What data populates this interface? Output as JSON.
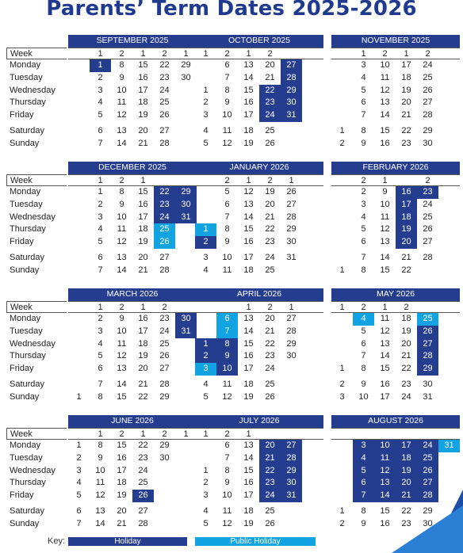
{
  "title": "Parents’ Term Dates 2025-2026",
  "row_labels": [
    "Week",
    "Monday",
    "Tuesday",
    "Wednesday",
    "Thursday",
    "Friday",
    "Saturday",
    "Sunday"
  ],
  "months": [
    {
      "name": "SEPTEMBER 2025",
      "weeks": [
        "",
        "1",
        "2",
        "1",
        "2",
        "1"
      ],
      "days": [
        [
          "",
          "1",
          "8",
          "15",
          "22",
          "29"
        ],
        [
          "",
          "2",
          "9",
          "16",
          "23",
          "30"
        ],
        [
          "",
          "3",
          "10",
          "17",
          "24",
          ""
        ],
        [
          "",
          "4",
          "11",
          "18",
          "25",
          ""
        ],
        [
          "",
          "5",
          "12",
          "19",
          "26",
          ""
        ]
      ],
      "weekend": [
        [
          "",
          "6",
          "13",
          "20",
          "27",
          ""
        ],
        [
          "",
          "7",
          "14",
          "21",
          "28",
          ""
        ]
      ],
      "hol": [
        "0-1"
      ],
      "pub": []
    },
    {
      "name": "OCTOBER 2025",
      "weeks": [
        "1",
        "2",
        "1",
        "2",
        "",
        ""
      ],
      "days": [
        [
          "",
          "6",
          "13",
          "20",
          "27",
          ""
        ],
        [
          "",
          "7",
          "14",
          "21",
          "28",
          ""
        ],
        [
          "1",
          "8",
          "15",
          "22",
          "29",
          ""
        ],
        [
          "2",
          "9",
          "16",
          "23",
          "30",
          ""
        ],
        [
          "3",
          "10",
          "17",
          "24",
          "31",
          ""
        ]
      ],
      "weekend": [
        [
          "4",
          "11",
          "18",
          "25",
          "",
          ""
        ],
        [
          "5",
          "12",
          "19",
          "26",
          "",
          ""
        ]
      ],
      "hol": [
        "0-4",
        "1-4",
        "2-3",
        "2-4",
        "3-3",
        "3-4",
        "4-3",
        "4-4"
      ],
      "pub": []
    },
    {
      "name": "NOVEMBER 2025",
      "weeks": [
        "",
        "1",
        "2",
        "1",
        "2",
        ""
      ],
      "days": [
        [
          "",
          "3",
          "10",
          "17",
          "24",
          ""
        ],
        [
          "",
          "4",
          "11",
          "18",
          "25",
          ""
        ],
        [
          "",
          "5",
          "12",
          "19",
          "26",
          ""
        ],
        [
          "",
          "6",
          "13",
          "20",
          "27",
          ""
        ],
        [
          "",
          "7",
          "14",
          "21",
          "28",
          ""
        ]
      ],
      "weekend": [
        [
          "1",
          "8",
          "15",
          "22",
          "29",
          ""
        ],
        [
          "2",
          "9",
          "16",
          "23",
          "30",
          ""
        ]
      ],
      "hol": [],
      "pub": []
    },
    {
      "name": "DECEMBER 2025",
      "weeks": [
        "",
        "1",
        "2",
        "1",
        "",
        ""
      ],
      "days": [
        [
          "",
          "1",
          "8",
          "15",
          "22",
          "29"
        ],
        [
          "",
          "2",
          "9",
          "16",
          "23",
          "30"
        ],
        [
          "",
          "3",
          "10",
          "17",
          "24",
          "31"
        ],
        [
          "",
          "4",
          "11",
          "18",
          "25",
          ""
        ],
        [
          "",
          "5",
          "12",
          "19",
          "26",
          ""
        ]
      ],
      "weekend": [
        [
          "",
          "6",
          "13",
          "20",
          "27",
          ""
        ],
        [
          "",
          "7",
          "14",
          "21",
          "28",
          ""
        ]
      ],
      "hol": [
        "0-4",
        "0-5",
        "1-4",
        "1-5",
        "2-4",
        "2-5"
      ],
      "pub": [
        "3-4",
        "4-4"
      ]
    },
    {
      "name": "JANUARY 2026",
      "weeks": [
        "",
        "2",
        "1",
        "2",
        "1",
        ""
      ],
      "days": [
        [
          "",
          "5",
          "12",
          "19",
          "26",
          ""
        ],
        [
          "",
          "6",
          "13",
          "20",
          "27",
          ""
        ],
        [
          "",
          "7",
          "14",
          "21",
          "28",
          ""
        ],
        [
          "1",
          "8",
          "15",
          "22",
          "29",
          ""
        ],
        [
          "2",
          "9",
          "16",
          "23",
          "30",
          ""
        ]
      ],
      "weekend": [
        [
          "3",
          "10",
          "17",
          "24",
          "31",
          ""
        ],
        [
          "4",
          "11",
          "18",
          "25",
          "",
          ""
        ]
      ],
      "hol": [
        "4-0"
      ],
      "pub": [
        "3-0"
      ]
    },
    {
      "name": "FEBRUARY 2026",
      "weeks": [
        "",
        "2",
        "1",
        "",
        "2",
        ""
      ],
      "days": [
        [
          "",
          "2",
          "9",
          "16",
          "23",
          ""
        ],
        [
          "",
          "3",
          "10",
          "17",
          "24",
          ""
        ],
        [
          "",
          "4",
          "11",
          "18",
          "25",
          ""
        ],
        [
          "",
          "5",
          "12",
          "19",
          "26",
          ""
        ],
        [
          "",
          "6",
          "13",
          "20",
          "27",
          ""
        ]
      ],
      "weekend": [
        [
          "",
          "7",
          "14",
          "21",
          "28",
          ""
        ],
        [
          "1",
          "8",
          "15",
          "22",
          "",
          ""
        ]
      ],
      "hol": [
        "0-3",
        "0-4",
        "1-3",
        "2-3",
        "3-3",
        "4-3"
      ],
      "pub": []
    },
    {
      "name": "MARCH 2026",
      "weeks": [
        "",
        "1",
        "2",
        "1",
        "2",
        ""
      ],
      "days": [
        [
          "",
          "2",
          "9",
          "16",
          "23",
          "30"
        ],
        [
          "",
          "3",
          "10",
          "17",
          "24",
          "31"
        ],
        [
          "",
          "4",
          "11",
          "18",
          "25",
          ""
        ],
        [
          "",
          "5",
          "12",
          "19",
          "26",
          ""
        ],
        [
          "",
          "6",
          "13",
          "20",
          "27",
          ""
        ]
      ],
      "weekend": [
        [
          "",
          "7",
          "14",
          "21",
          "28",
          ""
        ],
        [
          "1",
          "8",
          "15",
          "22",
          "29",
          ""
        ]
      ],
      "hol": [
        "0-5",
        "1-5"
      ],
      "pub": []
    },
    {
      "name": "APRIL 2026",
      "weeks": [
        "",
        "",
        "1",
        "2",
        "1",
        ""
      ],
      "days": [
        [
          "",
          "6",
          "13",
          "20",
          "27",
          ""
        ],
        [
          "",
          "7",
          "14",
          "21",
          "28",
          ""
        ],
        [
          "1",
          "8",
          "15",
          "22",
          "29",
          ""
        ],
        [
          "2",
          "9",
          "16",
          "23",
          "30",
          ""
        ],
        [
          "3",
          "10",
          "17",
          "24",
          "",
          ""
        ]
      ],
      "weekend": [
        [
          "4",
          "11",
          "18",
          "25",
          "",
          ""
        ],
        [
          "5",
          "12",
          "19",
          "26",
          "",
          ""
        ]
      ],
      "hol": [
        "2-0",
        "2-1",
        "3-0",
        "3-1",
        "4-1"
      ],
      "pub": [
        "0-1",
        "1-1",
        "4-0"
      ]
    },
    {
      "name": "MAY 2026",
      "weeks": [
        "1",
        "2",
        "1",
        "2",
        "",
        ""
      ],
      "days": [
        [
          "",
          "4",
          "11",
          "18",
          "25",
          ""
        ],
        [
          "",
          "5",
          "12",
          "19",
          "26",
          ""
        ],
        [
          "",
          "6",
          "13",
          "20",
          "27",
          ""
        ],
        [
          "",
          "7",
          "14",
          "21",
          "28",
          ""
        ],
        [
          "1",
          "8",
          "15",
          "22",
          "29",
          ""
        ]
      ],
      "weekend": [
        [
          "2",
          "9",
          "16",
          "23",
          "30",
          ""
        ],
        [
          "3",
          "10",
          "17",
          "24",
          "31",
          ""
        ]
      ],
      "hol": [
        "1-4",
        "2-4",
        "3-4",
        "4-4"
      ],
      "pub": [
        "0-1",
        "0-4"
      ]
    },
    {
      "name": "JUNE 2026",
      "weeks": [
        "",
        "1",
        "2",
        "1",
        "2",
        "1"
      ],
      "days": [
        [
          "1",
          "8",
          "15",
          "22",
          "29",
          ""
        ],
        [
          "2",
          "9",
          "16",
          "23",
          "30",
          ""
        ],
        [
          "3",
          "10",
          "17",
          "24",
          "",
          ""
        ],
        [
          "4",
          "11",
          "18",
          "25",
          "",
          ""
        ],
        [
          "5",
          "12",
          "19",
          "26",
          "",
          ""
        ]
      ],
      "weekend": [
        [
          "6",
          "13",
          "20",
          "27",
          "",
          ""
        ],
        [
          "7",
          "14",
          "21",
          "28",
          "",
          ""
        ]
      ],
      "hol": [
        "4-3"
      ],
      "pub": []
    },
    {
      "name": "JULY 2026",
      "weeks": [
        "1",
        "2",
        "1",
        "",
        "",
        ""
      ],
      "days": [
        [
          "",
          "6",
          "13",
          "20",
          "27",
          ""
        ],
        [
          "",
          "7",
          "14",
          "21",
          "28",
          ""
        ],
        [
          "1",
          "8",
          "15",
          "22",
          "29",
          ""
        ],
        [
          "2",
          "9",
          "16",
          "23",
          "30",
          ""
        ],
        [
          "3",
          "10",
          "17",
          "24",
          "31",
          ""
        ]
      ],
      "weekend": [
        [
          "4",
          "11",
          "18",
          "25",
          "",
          ""
        ],
        [
          "5",
          "12",
          "19",
          "26",
          "",
          ""
        ]
      ],
      "hol": [
        "0-3",
        "0-4",
        "1-3",
        "1-4",
        "2-3",
        "2-4",
        "3-3",
        "3-4",
        "4-3",
        "4-4"
      ],
      "pub": []
    },
    {
      "name": "AUGUST 2026",
      "weeks": [
        "",
        "",
        "",
        "",
        "",
        ""
      ],
      "days": [
        [
          "",
          "3",
          "10",
          "17",
          "24",
          "31"
        ],
        [
          "",
          "4",
          "11",
          "18",
          "25",
          ""
        ],
        [
          "",
          "5",
          "12",
          "19",
          "26",
          ""
        ],
        [
          "",
          "6",
          "13",
          "20",
          "27",
          ""
        ],
        [
          "",
          "7",
          "14",
          "21",
          "28",
          ""
        ]
      ],
      "weekend": [
        [
          "1",
          "8",
          "15",
          "22",
          "29",
          ""
        ],
        [
          "2",
          "9",
          "16",
          "23",
          "30",
          ""
        ]
      ],
      "hol": [
        "0-1",
        "0-2",
        "0-3",
        "0-4",
        "1-1",
        "1-2",
        "1-3",
        "1-4",
        "2-1",
        "2-2",
        "2-3",
        "2-4",
        "3-1",
        "3-2",
        "3-3",
        "3-4",
        "4-1",
        "4-2",
        "4-3",
        "4-4"
      ],
      "pub": [
        "0-5"
      ]
    }
  ],
  "key": {
    "label": "Key:",
    "holiday": "Holiday",
    "public_holiday": "Public Holiday"
  },
  "colors": {
    "holiday": "#253d8f",
    "public_holiday": "#12a3e3"
  }
}
